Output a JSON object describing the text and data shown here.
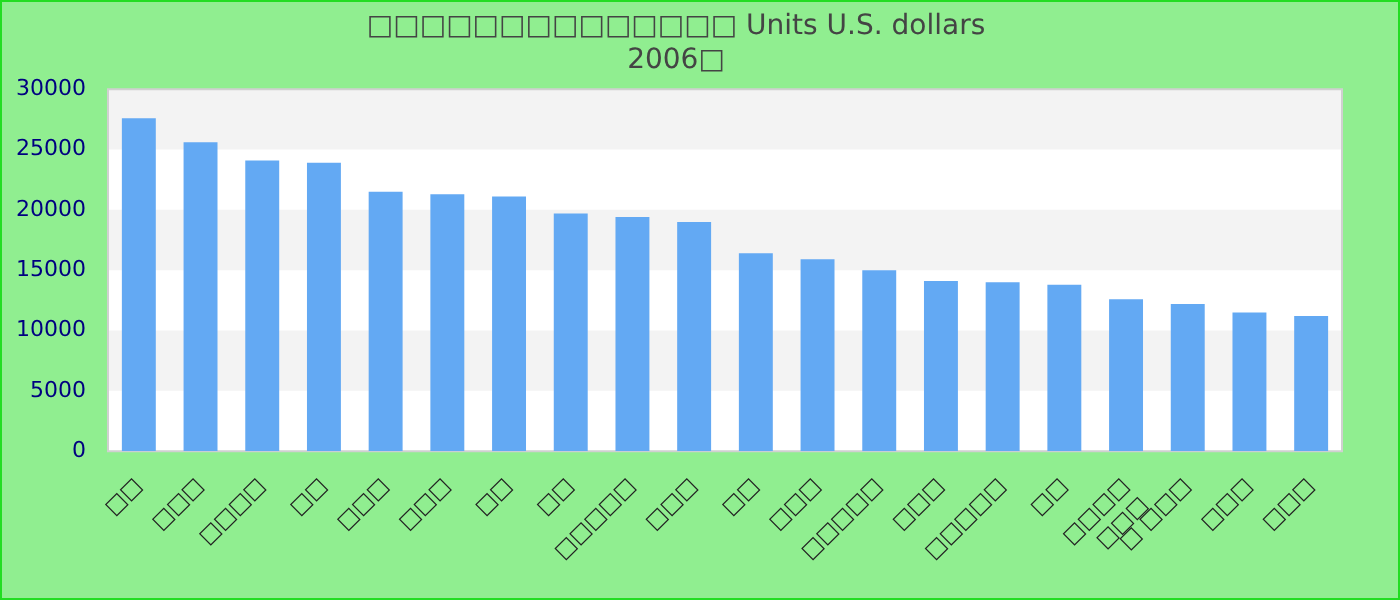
{
  "chart_data": {
    "type": "bar",
    "title": "□□□□□□□□□□□□□□ Units U.S. dollars\n2006□",
    "categories": [
      "□□",
      "□□□",
      "□□□□",
      "□□",
      "□□□",
      "□□□",
      "□□",
      "□□",
      "□□□□□",
      "□□□",
      "□□",
      "□□□",
      "□□□□□",
      "□□□",
      "□□□□□",
      "□□",
      "□□□□\n□□□",
      "□ □□□",
      "□□□",
      "□□□"
    ],
    "values": [
      27600,
      25600,
      24100,
      23900,
      21500,
      21300,
      21100,
      19700,
      19400,
      19000,
      16400,
      15900,
      15000,
      14100,
      14000,
      13800,
      12600,
      12200,
      11500,
      11200
    ],
    "color": "#63a9f3",
    "ylim": [
      0,
      30000
    ],
    "yticks": [
      0,
      5000,
      10000,
      15000,
      20000,
      25000,
      30000
    ]
  }
}
